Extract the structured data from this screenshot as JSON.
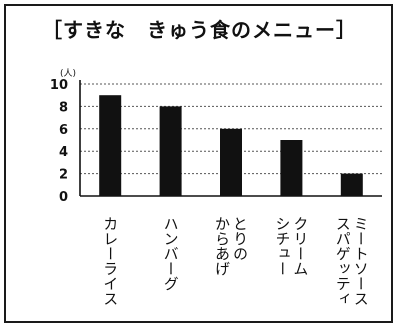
{
  "chart_data": {
    "type": "bar",
    "title": "［すきな　きゅう食のメニュー］",
    "unit_label": "(人)",
    "ylabel": "",
    "xlabel": "",
    "ylim": [
      0,
      10
    ],
    "yticks": [
      0,
      2,
      4,
      6,
      8,
      10
    ],
    "grid": true,
    "categories": [
      [
        "カレーライス"
      ],
      [
        "ハンバーグ"
      ],
      [
        "とりの",
        "からあげ"
      ],
      [
        "クリーム",
        "シチュー"
      ],
      [
        "ミートソース",
        "スパゲッティ"
      ]
    ],
    "values": [
      9,
      8,
      6,
      5,
      2
    ],
    "colors": {
      "bar": "#111111",
      "grid": "#555555",
      "axis": "#111111",
      "frame": "#1a1a1a"
    }
  }
}
